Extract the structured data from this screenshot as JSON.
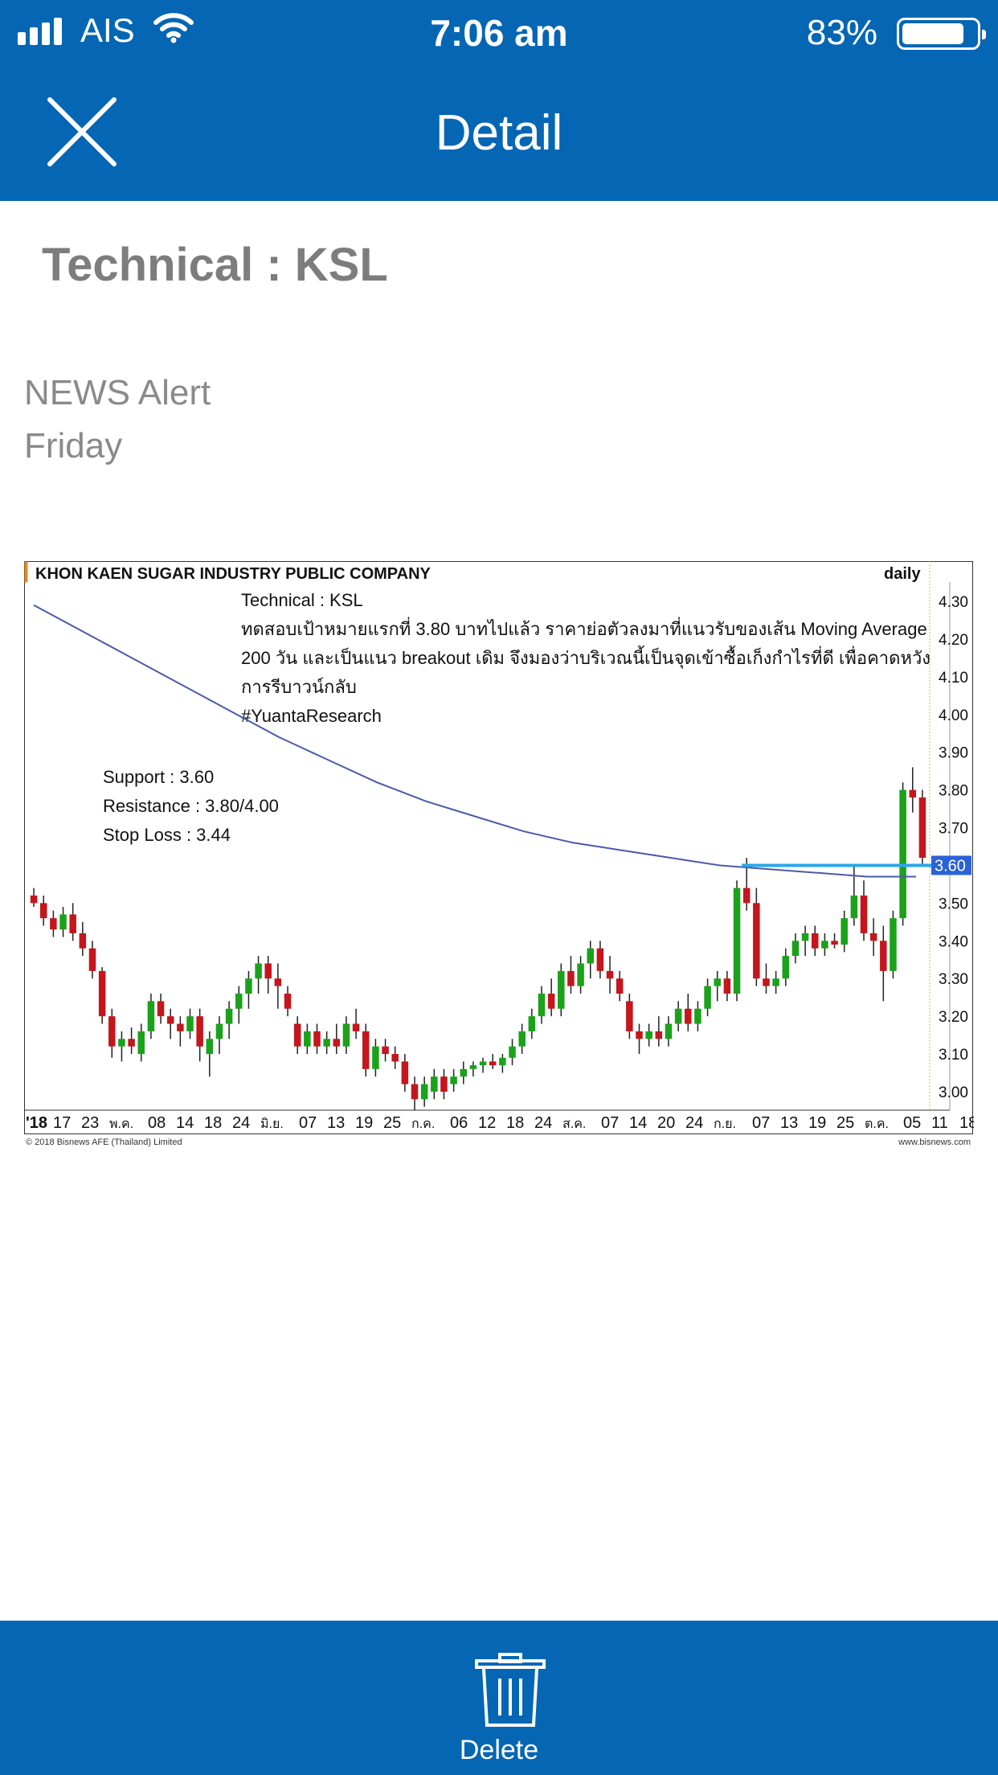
{
  "status_bar": {
    "carrier": "AIS",
    "time": "7:06 am",
    "battery": "83%",
    "battery_level": 0.83
  },
  "nav": {
    "title": "Detail",
    "close_icon": "close-icon"
  },
  "article": {
    "title": "Technical : KSL",
    "source": "NEWS Alert",
    "day": "Friday"
  },
  "chart": {
    "company": "KHON KAEN SUGAR INDUSTRY PUBLIC COMPANY",
    "period": "daily",
    "note_title": "Technical : KSL",
    "note_lines": [
      "ทดสอบเป้าหมายแรกที่ 3.80 บาทไปแล้ว ราคาย่อตัวลงมาที่แนวรับของเส้น Moving Average",
      "200 วัน และเป็นแนว breakout เดิม จึงมองว่าบริเวณนี้เป็นจุดเข้าซื้อเก็งกำไรที่ดี เพื่อคาดหวัง",
      "การรีบาวน์กลับ",
      "#YuantaResearch"
    ],
    "levels": [
      "Support : 3.60",
      "Resistance : 3.80/4.00",
      "Stop Loss : 3.44"
    ],
    "y_ticks": [
      "4.30",
      "4.20",
      "4.10",
      "4.00",
      "3.90",
      "3.80",
      "3.70",
      "3.60",
      "3.50",
      "3.40",
      "3.30",
      "3.20",
      "3.10",
      "3.00"
    ],
    "current_price_label": "3.60",
    "x_ticks": [
      "'18",
      "17",
      "23",
      "พ.ค.",
      "08",
      "14",
      "18",
      "24",
      "มิ.ย.",
      "07",
      "13",
      "19",
      "25",
      "ก.ค.",
      "06",
      "12",
      "18",
      "24",
      "ส.ค.",
      "07",
      "14",
      "20",
      "24",
      "ก.ย.",
      "07",
      "13",
      "19",
      "25",
      "ต.ค.",
      "05",
      "11",
      "18"
    ],
    "copyright": "© 2018 Bisnews AFE (Thailand) Limited",
    "website": "www.bisnews.com"
  },
  "chart_data": {
    "type": "candlestick",
    "ylim": [
      2.95,
      4.35
    ],
    "support_line": 3.6,
    "ma200": [
      4.29,
      4.22,
      4.15,
      4.08,
      4.01,
      3.94,
      3.88,
      3.82,
      3.77,
      3.73,
      3.69,
      3.66,
      3.64,
      3.62,
      3.6,
      3.59,
      3.58,
      3.57,
      3.57
    ],
    "candles": [
      [
        3.52,
        3.54,
        3.49,
        3.5
      ],
      [
        3.5,
        3.52,
        3.44,
        3.46
      ],
      [
        3.46,
        3.48,
        3.41,
        3.43
      ],
      [
        3.43,
        3.49,
        3.41,
        3.47
      ],
      [
        3.47,
        3.5,
        3.4,
        3.42
      ],
      [
        3.42,
        3.45,
        3.36,
        3.38
      ],
      [
        3.38,
        3.4,
        3.3,
        3.32
      ],
      [
        3.32,
        3.33,
        3.18,
        3.2
      ],
      [
        3.2,
        3.22,
        3.09,
        3.12
      ],
      [
        3.12,
        3.16,
        3.08,
        3.14
      ],
      [
        3.14,
        3.17,
        3.1,
        3.12
      ],
      [
        3.1,
        3.18,
        3.08,
        3.16
      ],
      [
        3.16,
        3.26,
        3.14,
        3.24
      ],
      [
        3.24,
        3.26,
        3.18,
        3.2
      ],
      [
        3.2,
        3.22,
        3.14,
        3.18
      ],
      [
        3.18,
        3.2,
        3.12,
        3.16
      ],
      [
        3.16,
        3.22,
        3.14,
        3.2
      ],
      [
        3.2,
        3.22,
        3.08,
        3.12
      ],
      [
        3.1,
        3.16,
        3.04,
        3.14
      ],
      [
        3.14,
        3.2,
        3.1,
        3.18
      ],
      [
        3.18,
        3.24,
        3.14,
        3.22
      ],
      [
        3.22,
        3.28,
        3.18,
        3.26
      ],
      [
        3.26,
        3.32,
        3.22,
        3.3
      ],
      [
        3.3,
        3.36,
        3.26,
        3.34
      ],
      [
        3.34,
        3.36,
        3.26,
        3.3
      ],
      [
        3.3,
        3.34,
        3.22,
        3.28
      ],
      [
        3.26,
        3.28,
        3.2,
        3.22
      ],
      [
        3.18,
        3.2,
        3.1,
        3.12
      ],
      [
        3.12,
        3.18,
        3.1,
        3.16
      ],
      [
        3.16,
        3.18,
        3.1,
        3.12
      ],
      [
        3.12,
        3.16,
        3.1,
        3.14
      ],
      [
        3.14,
        3.18,
        3.1,
        3.12
      ],
      [
        3.12,
        3.2,
        3.1,
        3.18
      ],
      [
        3.18,
        3.22,
        3.14,
        3.16
      ],
      [
        3.16,
        3.18,
        3.04,
        3.06
      ],
      [
        3.06,
        3.14,
        3.04,
        3.12
      ],
      [
        3.12,
        3.14,
        3.08,
        3.1
      ],
      [
        3.1,
        3.12,
        3.06,
        3.08
      ],
      [
        3.08,
        3.1,
        3.0,
        3.02
      ],
      [
        3.02,
        3.04,
        2.95,
        2.98
      ],
      [
        2.98,
        3.04,
        2.96,
        3.02
      ],
      [
        3.0,
        3.06,
        2.98,
        3.04
      ],
      [
        3.04,
        3.06,
        2.98,
        3.0
      ],
      [
        3.02,
        3.06,
        3.0,
        3.04
      ],
      [
        3.04,
        3.08,
        3.02,
        3.06
      ],
      [
        3.06,
        3.08,
        3.04,
        3.07
      ],
      [
        3.07,
        3.09,
        3.05,
        3.08
      ],
      [
        3.08,
        3.1,
        3.06,
        3.07
      ],
      [
        3.07,
        3.1,
        3.05,
        3.09
      ],
      [
        3.09,
        3.14,
        3.07,
        3.12
      ],
      [
        3.12,
        3.18,
        3.1,
        3.16
      ],
      [
        3.16,
        3.22,
        3.14,
        3.2
      ],
      [
        3.2,
        3.28,
        3.18,
        3.26
      ],
      [
        3.26,
        3.3,
        3.2,
        3.22
      ],
      [
        3.22,
        3.34,
        3.2,
        3.32
      ],
      [
        3.32,
        3.36,
        3.26,
        3.28
      ],
      [
        3.28,
        3.36,
        3.26,
        3.34
      ],
      [
        3.34,
        3.4,
        3.3,
        3.38
      ],
      [
        3.38,
        3.4,
        3.3,
        3.32
      ],
      [
        3.32,
        3.36,
        3.26,
        3.3
      ],
      [
        3.3,
        3.32,
        3.24,
        3.26
      ],
      [
        3.24,
        3.26,
        3.14,
        3.16
      ],
      [
        3.16,
        3.18,
        3.1,
        3.14
      ],
      [
        3.14,
        3.18,
        3.12,
        3.16
      ],
      [
        3.16,
        3.2,
        3.12,
        3.14
      ],
      [
        3.14,
        3.2,
        3.12,
        3.18
      ],
      [
        3.18,
        3.24,
        3.16,
        3.22
      ],
      [
        3.22,
        3.26,
        3.16,
        3.18
      ],
      [
        3.18,
        3.24,
        3.16,
        3.22
      ],
      [
        3.22,
        3.3,
        3.2,
        3.28
      ],
      [
        3.28,
        3.32,
        3.24,
        3.3
      ],
      [
        3.3,
        3.32,
        3.24,
        3.26
      ],
      [
        3.26,
        3.56,
        3.24,
        3.54
      ],
      [
        3.54,
        3.62,
        3.48,
        3.5
      ],
      [
        3.5,
        3.54,
        3.28,
        3.3
      ],
      [
        3.3,
        3.34,
        3.26,
        3.28
      ],
      [
        3.28,
        3.32,
        3.26,
        3.3
      ],
      [
        3.3,
        3.38,
        3.28,
        3.36
      ],
      [
        3.36,
        3.42,
        3.34,
        3.4
      ],
      [
        3.4,
        3.44,
        3.36,
        3.42
      ],
      [
        3.42,
        3.44,
        3.36,
        3.38
      ],
      [
        3.38,
        3.42,
        3.36,
        3.4
      ],
      [
        3.4,
        3.42,
        3.38,
        3.39
      ],
      [
        3.39,
        3.48,
        3.37,
        3.46
      ],
      [
        3.46,
        3.6,
        3.44,
        3.52
      ],
      [
        3.52,
        3.56,
        3.4,
        3.42
      ],
      [
        3.42,
        3.46,
        3.36,
        3.4
      ],
      [
        3.4,
        3.44,
        3.24,
        3.32
      ],
      [
        3.32,
        3.48,
        3.3,
        3.46
      ],
      [
        3.46,
        3.82,
        3.44,
        3.8
      ],
      [
        3.8,
        3.86,
        3.74,
        3.78
      ],
      [
        3.78,
        3.8,
        3.6,
        3.62
      ]
    ]
  },
  "footer": {
    "delete_label": "Delete",
    "delete_icon": "trash-icon"
  },
  "colors": {
    "primary": "#0566b4",
    "up": "#1aa21a",
    "down": "#c4161c",
    "ma": "#4a5aa8",
    "support": "#2aa6ea"
  }
}
